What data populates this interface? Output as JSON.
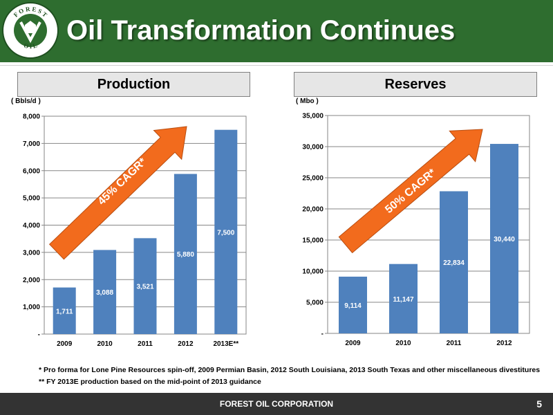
{
  "slide": {
    "title": "Oil Transformation Continues",
    "logo_text_top": "F O R E S T",
    "logo_text_bottom": "O I L"
  },
  "sections": {
    "production": "Production",
    "reserves": "Reserves"
  },
  "chart_data": [
    {
      "type": "bar",
      "unit_label": "( Bbls/d )",
      "categories": [
        "2009",
        "2010",
        "2011",
        "2012",
        "2013E**"
      ],
      "values": [
        1711,
        3088,
        3521,
        5880,
        7500
      ],
      "data_labels": [
        "1,711",
        "3,088",
        "3,521",
        "5,880",
        "7,500"
      ],
      "ylim": [
        0,
        8000
      ],
      "yticks": [
        0,
        1000,
        2000,
        3000,
        4000,
        5000,
        6000,
        7000,
        8000
      ],
      "ytick_labels": [
        "-",
        "1,000",
        "2,000",
        "3,000",
        "4,000",
        "5,000",
        "6,000",
        "7,000",
        "8,000"
      ],
      "grid": true,
      "bar_color": "#4f81bd",
      "annotation": "45% CAGR*",
      "arrow_color": "#f26b1d"
    },
    {
      "type": "bar",
      "unit_label": "( Mbo )",
      "categories": [
        "2009",
        "2010",
        "2011",
        "2012"
      ],
      "values": [
        9114,
        11147,
        22834,
        30440
      ],
      "data_labels": [
        "9,114",
        "11,147",
        "22,834",
        "30,440"
      ],
      "ylim": [
        0,
        35000
      ],
      "yticks": [
        0,
        5000,
        10000,
        15000,
        20000,
        25000,
        30000,
        35000
      ],
      "ytick_labels": [
        "-",
        "5,000",
        "10,000",
        "15,000",
        "20,000",
        "25,000",
        "30,000",
        "35,000"
      ],
      "grid": true,
      "bar_color": "#4f81bd",
      "annotation": "50% CAGR*",
      "arrow_color": "#f26b1d"
    }
  ],
  "footnotes": [
    "*   Pro forma for Lone Pine Resources spin-off, 2009 Permian Basin, 2012 South Louisiana, 2013 South Texas and other miscellaneous divestitures",
    "**  FY 2013E production based on the mid-point of  2013 guidance"
  ],
  "footer": {
    "company": "FOREST OIL CORPORATION",
    "page_number": "5"
  },
  "colors": {
    "header_green": "#2e6d2f",
    "footer_dark": "#333333",
    "section_box": "#e6e6e6"
  }
}
